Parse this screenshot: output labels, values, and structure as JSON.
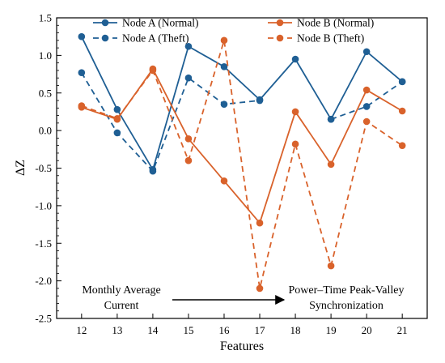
{
  "chart_data": {
    "type": "line",
    "title": "",
    "xlabel": "Features",
    "ylabel": "ΔZ",
    "x": [
      12,
      13,
      14,
      15,
      16,
      17,
      18,
      19,
      20,
      21
    ],
    "x_ticks": [
      "12",
      "13",
      "14",
      "15",
      "16",
      "17",
      "18",
      "19",
      "20",
      "21"
    ],
    "xlim": [
      11.3,
      21.7
    ],
    "ylim": [
      -2.5,
      1.5
    ],
    "y_ticks": [
      "1.5",
      "1.0",
      "0.5",
      "0.0",
      "-0.5",
      "-1.0",
      "-1.5",
      "-2.0",
      "-2.5"
    ],
    "y_tick_values": [
      1.5,
      1.0,
      0.5,
      0.0,
      -0.5,
      -1.0,
      -1.5,
      -2.0,
      -2.5
    ],
    "grid": false,
    "legend_position": "top",
    "series": [
      {
        "name": "Node A (Normal)",
        "color": "#1f5f94",
        "dash": "solid",
        "values": [
          1.25,
          0.28,
          -0.52,
          1.12,
          0.85,
          0.41,
          0.95,
          0.15,
          1.05,
          0.65
        ]
      },
      {
        "name": "Node A (Theft)",
        "color": "#1f5f94",
        "dash": "dashed",
        "values": [
          0.77,
          -0.03,
          -0.54,
          0.7,
          0.35,
          0.4,
          null,
          0.15,
          0.32,
          0.65
        ]
      },
      {
        "name": "Node B (Normal)",
        "color": "#d9622b",
        "dash": "solid",
        "values": [
          0.31,
          0.15,
          0.82,
          -0.11,
          -0.67,
          -1.23,
          0.25,
          -0.45,
          0.54,
          0.26
        ]
      },
      {
        "name": "Node B (Theft)",
        "color": "#d9622b",
        "dash": "dashed",
        "values": [
          0.33,
          0.16,
          0.8,
          -0.4,
          1.2,
          -2.1,
          -0.18,
          -1.8,
          0.12,
          -0.2
        ]
      }
    ],
    "annotations": {
      "left_note": [
        "Monthly Average",
        "Current"
      ],
      "right_note": [
        "Power–Time Peak-Valley",
        "Synchronization"
      ],
      "arrow": "left-to-right"
    }
  }
}
